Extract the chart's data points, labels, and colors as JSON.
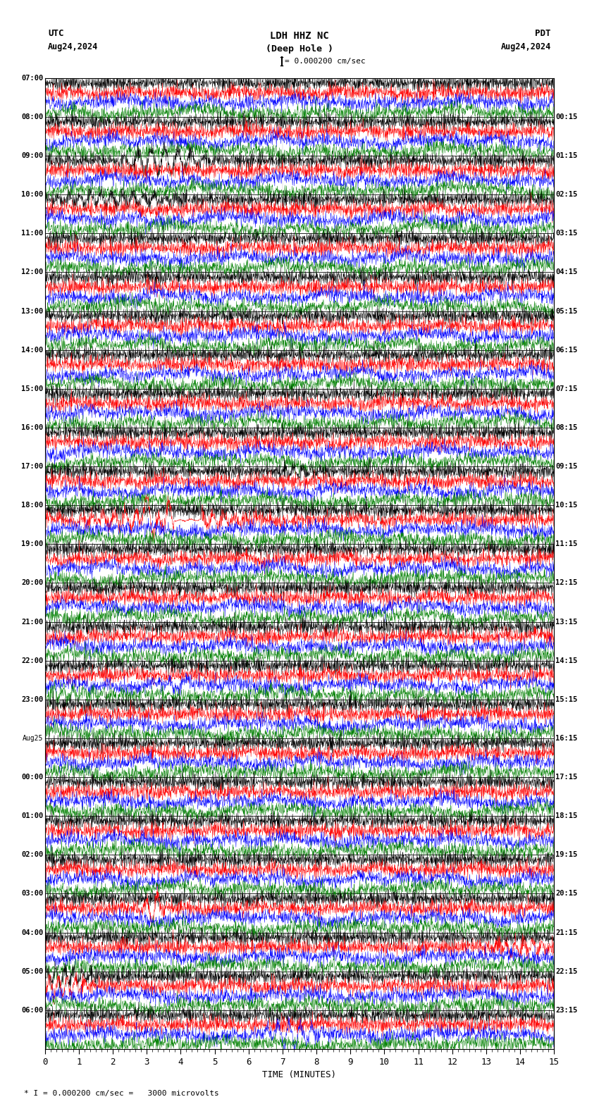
{
  "title_line1": "LDH HHZ NC",
  "title_line2": "(Deep Hole )",
  "scale_label": "= 0.000200 cm/sec",
  "utc_label": "UTC",
  "pdt_label": "PDT",
  "date_left": "Aug24,2024",
  "date_right": "Aug24,2024",
  "xlabel": "TIME (MINUTES)",
  "bottom_note": "* I = 0.000200 cm/sec =   3000 microvolts",
  "left_times": [
    "07:00",
    "08:00",
    "09:00",
    "10:00",
    "11:00",
    "12:00",
    "13:00",
    "14:00",
    "15:00",
    "16:00",
    "17:00",
    "18:00",
    "19:00",
    "20:00",
    "21:00",
    "22:00",
    "23:00",
    "Aug25",
    "00:00",
    "01:00",
    "02:00",
    "03:00",
    "04:00",
    "05:00",
    "06:00"
  ],
  "right_times": [
    "00:15",
    "01:15",
    "02:15",
    "03:15",
    "04:15",
    "05:15",
    "06:15",
    "07:15",
    "08:15",
    "09:15",
    "10:15",
    "11:15",
    "12:15",
    "13:15",
    "14:15",
    "15:15",
    "16:15",
    "17:15",
    "18:15",
    "19:15",
    "20:15",
    "21:15",
    "22:15",
    "23:15"
  ],
  "colors": [
    "black",
    "red",
    "blue",
    "green"
  ],
  "n_rows": 25,
  "n_traces_per_row": 4,
  "xmin": 0,
  "xmax": 15,
  "fig_width": 8.5,
  "fig_height": 15.84,
  "dpi": 100,
  "bg_color": "white",
  "noise_seed": 42
}
